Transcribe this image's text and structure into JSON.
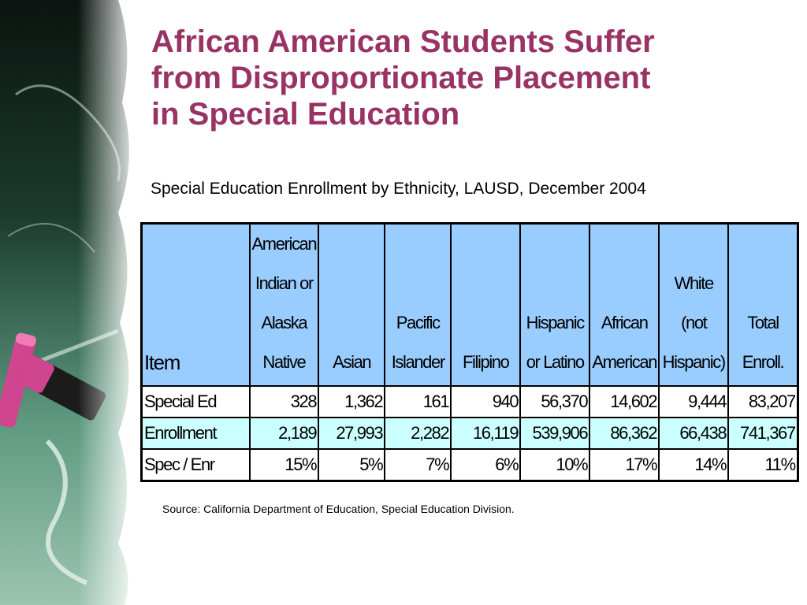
{
  "slide": {
    "title_lines": [
      "African American Students Suffer",
      "from Disproportionate Placement",
      "in Special Education"
    ],
    "subtitle": "Special Education Enrollment by Ethnicity, LAUSD, December 2004",
    "source": "Source: California Department of Education, Special Education Division."
  },
  "table": {
    "headers": [
      "Item",
      "American Indian or Alaska Native",
      "Asian",
      "Pacific Islander",
      "Filipino",
      "Hispanic or Latino",
      "African American",
      "White (not Hispanic)",
      "Total Enroll."
    ],
    "rows": [
      {
        "label": "Special Ed",
        "values": [
          "328",
          "1,362",
          "161",
          "940",
          "56,370",
          "14,602",
          "9,444",
          "83,207"
        ]
      },
      {
        "label": "Enrollment",
        "values": [
          "2,189",
          "27,993",
          "2,282",
          "16,119",
          "539,906",
          "86,362",
          "66,438",
          "741,367"
        ]
      },
      {
        "label": "Spec / Enr",
        "values": [
          "15%",
          "5%",
          "7%",
          "6%",
          "10%",
          "17%",
          "14%",
          "11%"
        ]
      }
    ]
  },
  "colors": {
    "title": "#993366",
    "header_bg": "#99ccff",
    "alt_row_bg": "#ccffff"
  }
}
